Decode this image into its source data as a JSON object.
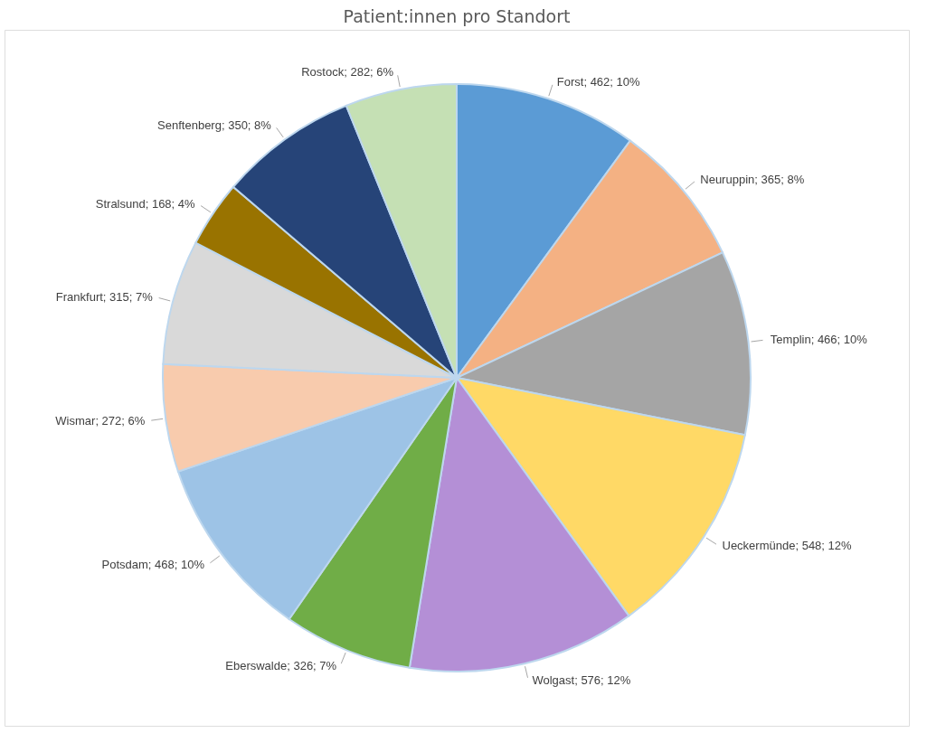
{
  "chart_data": {
    "type": "pie",
    "title": "Patient:innen pro Standort",
    "categories": [
      "Forst",
      "Neuruppin",
      "Templin",
      "Ueckermünde",
      "Wolgast",
      "Eberswalde",
      "Potsdam",
      "Wismar",
      "Frankfurt",
      "Stralsund",
      "Senftenberg",
      "Rostock"
    ],
    "values": [
      462,
      365,
      466,
      548,
      576,
      326,
      468,
      272,
      315,
      168,
      350,
      282
    ],
    "colors": [
      "#5b9bd5",
      "#f4b183",
      "#a5a5a5",
      "#ffd966",
      "#b48fd6",
      "#70ad47",
      "#9dc3e6",
      "#f8cbad",
      "#d9d9d9",
      "#997300",
      "#264478",
      "#c5e0b4"
    ],
    "value_labels": [
      "; 462; 10%",
      "; 365; 8%",
      "; 466; 10%",
      "; 548; 12%",
      "; 576; 12%",
      "; 326; 7%",
      "; 468; 10%",
      "; 272; 6%",
      "; 315; 7%",
      "; 168; 4%",
      "; 350; 8%",
      "; 282; 6%"
    ],
    "legend": false
  }
}
